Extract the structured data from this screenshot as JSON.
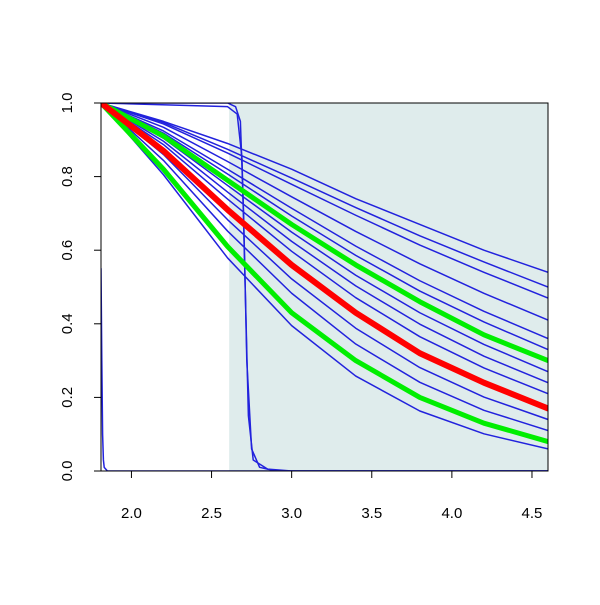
{
  "chart_data": {
    "type": "line",
    "xlim": [
      1.81,
      4.6
    ],
    "ylim": [
      0,
      1
    ],
    "xticks": [
      {
        "value": 2,
        "label": "2.0"
      },
      {
        "value": 2.5,
        "label": "2.5"
      },
      {
        "value": 3,
        "label": "3.0"
      },
      {
        "value": 3.5,
        "label": "3.5"
      },
      {
        "value": 4,
        "label": "4.0"
      },
      {
        "value": 4.5,
        "label": "4.5"
      }
    ],
    "yticks": [
      {
        "value": 0,
        "label": "0.0"
      },
      {
        "value": 0.2,
        "label": "0.2"
      },
      {
        "value": 0.4,
        "label": "0.4"
      },
      {
        "value": 0.6,
        "label": "0.6"
      },
      {
        "value": 0.8,
        "label": "0.8"
      },
      {
        "value": 1,
        "label": "1.0"
      }
    ],
    "shade": {
      "from": 2.61,
      "to": 4.6,
      "color": "#dfecec"
    },
    "x": [
      1.81,
      2.2,
      2.6,
      3.0,
      3.4,
      3.8,
      4.2,
      4.6
    ],
    "series": [
      {
        "color": "#2222dd",
        "width": 1.5,
        "values": [
          1,
          0.95,
          0.89,
          0.82,
          0.74,
          0.67,
          0.6,
          0.54
        ]
      },
      {
        "color": "#2222dd",
        "width": 1.5,
        "values": [
          1,
          0.947,
          0.874,
          0.796,
          0.716,
          0.639,
          0.568,
          0.5
        ]
      },
      {
        "color": "#2222dd",
        "width": 1.5,
        "values": [
          1,
          0.943,
          0.864,
          0.779,
          0.695,
          0.614,
          0.54,
          0.47
        ]
      },
      {
        "color": "#2222dd",
        "width": 1.5,
        "values": [
          1,
          0.934,
          0.841,
          0.745,
          0.651,
          0.563,
          0.483,
          0.41
        ]
      },
      {
        "color": "#2222dd",
        "width": 1.5,
        "values": [
          1,
          0.924,
          0.82,
          0.714,
          0.611,
          0.517,
          0.434,
          0.36
        ]
      },
      {
        "color": "#2222dd",
        "width": 1.5,
        "values": [
          1,
          0.918,
          0.807,
          0.693,
          0.586,
          0.489,
          0.405,
          0.33
        ]
      },
      {
        "color": "#2222dd",
        "width": 1.5,
        "values": [
          1,
          0.904,
          0.776,
          0.649,
          0.532,
          0.43,
          0.344,
          0.27
        ]
      },
      {
        "color": "#2222dd",
        "width": 1.5,
        "values": [
          1,
          0.896,
          0.758,
          0.624,
          0.503,
          0.399,
          0.312,
          0.24
        ]
      },
      {
        "color": "#2222dd",
        "width": 1.5,
        "values": [
          1,
          0.887,
          0.739,
          0.597,
          0.471,
          0.365,
          0.28,
          0.21
        ]
      },
      {
        "color": "#2222dd",
        "width": 1.5,
        "values": [
          1,
          0.86,
          0.683,
          0.522,
          0.388,
          0.281,
          0.201,
          0.14
        ]
      },
      {
        "color": "#2222dd",
        "width": 1.5,
        "values": [
          1,
          0.844,
          0.652,
          0.483,
          0.345,
          0.241,
          0.165,
          0.11
        ]
      },
      {
        "color": "#2222dd",
        "width": 1.5,
        "values": [
          1,
          0.805,
          0.579,
          0.395,
          0.258,
          0.163,
          0.101,
          0.06
        ]
      },
      {
        "color": "#2222dd",
        "width": 1.5,
        "x": [
          1.81,
          2.6,
          2.65,
          2.68,
          2.7,
          2.72,
          2.75,
          2.8,
          2.9,
          4.6
        ],
        "values": [
          1,
          1,
          0.99,
          0.95,
          0.7,
          0.3,
          0.06,
          0.01,
          0,
          0
        ]
      },
      {
        "color": "#2222dd",
        "width": 1.5,
        "x": [
          1.81,
          2.6,
          2.66,
          2.69,
          2.71,
          2.73,
          2.76,
          2.85,
          3.0,
          4.6
        ],
        "values": [
          1,
          0.99,
          0.97,
          0.85,
          0.5,
          0.15,
          0.03,
          0.005,
          0,
          0
        ]
      },
      {
        "color": "#2222dd",
        "width": 1.5,
        "x": [
          1.81,
          1.815,
          1.82,
          1.825,
          1.83,
          1.85,
          4.6
        ],
        "values": [
          0.55,
          0.3,
          0.1,
          0.03,
          0.01,
          0,
          0
        ]
      },
      {
        "color": "#00ee00",
        "width": 5,
        "values": [
          1,
          0.91,
          0.79,
          0.67,
          0.56,
          0.46,
          0.37,
          0.3
        ]
      },
      {
        "color": "#00ee00",
        "width": 5,
        "values": [
          1,
          0.82,
          0.61,
          0.43,
          0.3,
          0.2,
          0.13,
          0.08
        ]
      },
      {
        "color": "#ff0000",
        "width": 6,
        "values": [
          1,
          0.87,
          0.71,
          0.56,
          0.43,
          0.32,
          0.24,
          0.17
        ]
      }
    ]
  }
}
